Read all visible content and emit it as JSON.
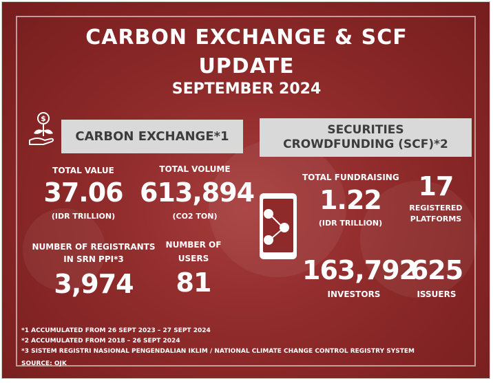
{
  "header": {
    "title_line1": "CARBON EXCHANGE & SCF",
    "title_line2": "UPDATE",
    "subtitle": "SEPTEMBER 2024"
  },
  "carbon_exchange": {
    "heading": "CARBON EXCHANGE*1",
    "total_value": {
      "label": "TOTAL VALUE",
      "value": "37.06",
      "unit": "(IDR TRILLION)"
    },
    "total_volume": {
      "label": "TOTAL VOLUME",
      "value": "613,894",
      "unit": "(CO2 TON)"
    },
    "registrants": {
      "label_line1": "NUMBER OF REGISTRANTS",
      "label_line2": "IN SRN PPI*3",
      "value": "3,974"
    },
    "users": {
      "label_line1": "NUMBER OF",
      "label_line2": "USERS",
      "value": "81"
    }
  },
  "scf": {
    "heading_line1": "SECURITIES",
    "heading_line2": "CROWDFUNDING (SCF)*2",
    "total_fundraising": {
      "label": "TOTAL FUNDRAISING",
      "value": "1.22",
      "unit": "(IDR TRILLION)"
    },
    "platforms": {
      "value": "17",
      "label_line1": "REGISTERED",
      "label_line2": "PLATFORMS"
    },
    "investors": {
      "value": "163,792",
      "label": "INVESTORS"
    },
    "issuers": {
      "value": "625",
      "label": "ISSUERS"
    }
  },
  "footnotes": {
    "note1": "*1 ACCUMULATED FROM 26 SEPT 2023 – 27 SEPT 2024",
    "note2": "*2 ACCUMULATED FROM 2018 – 26 SEPT 2024",
    "note3": "*3 SISTEM REGISTRI NASIONAL PENGENDALIAN IKLIM / NATIONAL CLIMATE CHANGE CONTROL REGISTRY SYSTEM",
    "source": "SOURCE: OJK"
  },
  "icons": {
    "carbon": "money-plant-hand-icon",
    "scf": "smartphone-network-icon"
  },
  "colors": {
    "background": "#8e2a2a",
    "heading_box": "#d9d9d9",
    "heading_text": "#3c3c3c",
    "text": "#ffffff"
  }
}
